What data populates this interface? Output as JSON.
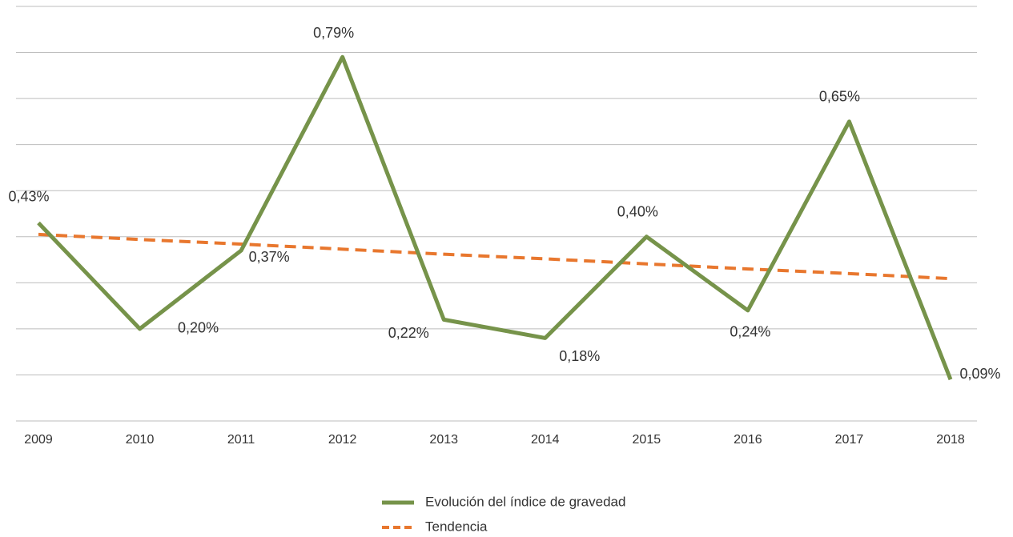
{
  "chart_data": {
    "type": "line",
    "categories": [
      "2009",
      "2010",
      "2011",
      "2012",
      "2013",
      "2014",
      "2015",
      "2016",
      "2017",
      "2018"
    ],
    "series": [
      {
        "name": "Evolución del índice de gravedad",
        "color": "#76934a",
        "dash": "solid",
        "values": [
          0.43,
          0.2,
          0.37,
          0.79,
          0.22,
          0.18,
          0.4,
          0.24,
          0.65,
          0.09
        ],
        "value_labels": [
          "0,43%",
          "0,20%",
          "0,37%",
          "0,79%",
          "0,22%",
          "0,18%",
          "0,40%",
          "0,24%",
          "0,65%",
          "0,09%"
        ]
      },
      {
        "name": "Tendencia",
        "color": "#e8772e",
        "dash": "dashed",
        "values": [
          0.405,
          0.394,
          0.384,
          0.373,
          0.362,
          0.352,
          0.341,
          0.33,
          0.32,
          0.309
        ]
      }
    ],
    "ylim": [
      0,
      0.9
    ],
    "yticks": [
      0,
      0.1,
      0.2,
      0.3,
      0.4,
      0.5,
      0.6,
      0.7,
      0.8,
      0.9
    ],
    "grid": true,
    "show_ytick_labels": false,
    "legend": "bottom"
  }
}
